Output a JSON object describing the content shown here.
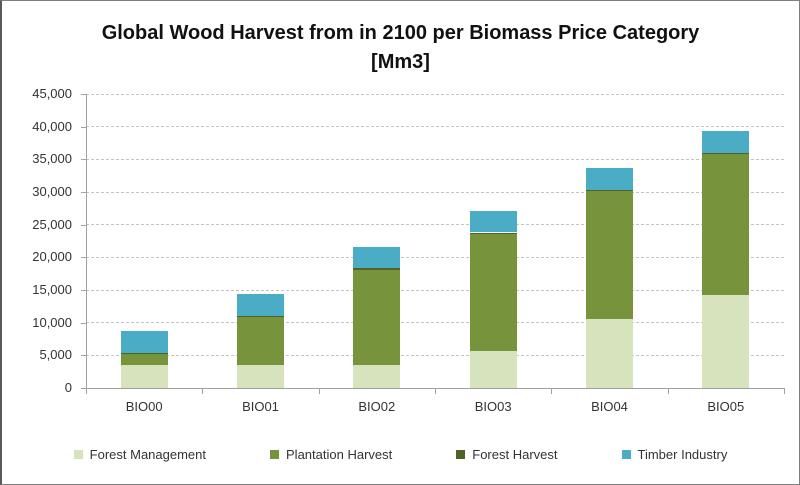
{
  "chart_data": {
    "type": "bar",
    "stacked": true,
    "title": "Global Wood Harvest from in 2100 per Biomass Price Category [Mm3]",
    "title_lines": {
      "line1": "Global Wood Harvest from in 2100 per Biomass Price Category",
      "line2": "[Mm3]"
    },
    "categories": [
      "BIO00",
      "BIO01",
      "BIO02",
      "BIO03",
      "BIO04",
      "BIO05"
    ],
    "series": [
      {
        "name": "Forest Management",
        "color": "#d6e3bc",
        "values": [
          3500,
          3500,
          3500,
          5700,
          10500,
          14200
        ]
      },
      {
        "name": "Plantation Harvest",
        "color": "#77933c",
        "values": [
          1700,
          7300,
          14600,
          17900,
          19600,
          21600
        ]
      },
      {
        "name": "Forest Harvest",
        "color": "#4f6228",
        "values": [
          200,
          200,
          200,
          200,
          200,
          200
        ]
      },
      {
        "name": "Timber Industry",
        "color": "#4bacc6",
        "values": [
          3300,
          3400,
          3300,
          3300,
          3300,
          3400
        ]
      }
    ],
    "totals": [
      8700,
      14400,
      21600,
      27100,
      33600,
      39400
    ],
    "ylim": [
      0,
      45000
    ],
    "ytick_step": 5000,
    "ytick_labels": [
      "0",
      "5,000",
      "10,000",
      "15,000",
      "20,000",
      "25,000",
      "30,000",
      "35,000",
      "40,000",
      "45,000"
    ],
    "grid": "horizontal-dashed",
    "legend_position": "bottom",
    "xlabel": "",
    "ylabel": ""
  },
  "colors": {
    "background": "#ffffff",
    "gridline": "#c3c3c3",
    "axis": "#a0a0a0",
    "text": "#333333",
    "title_text": "#111111",
    "frame_border": "#7f7f7f"
  }
}
